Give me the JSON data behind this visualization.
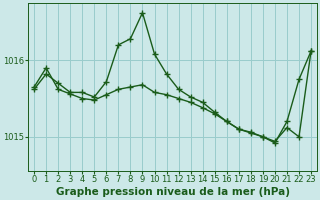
{
  "title": "",
  "xlabel": "Graphe pression niveau de la mer (hPa)",
  "xlabel_fontsize": 7.5,
  "background_color": "#cce8e8",
  "grid_color": "#99cccc",
  "line_color": "#1a5c1a",
  "marker": "+",
  "markersize": 4,
  "linewidth": 1.0,
  "xlim": [
    -0.5,
    23.5
  ],
  "ylim": [
    1014.55,
    1016.75
  ],
  "yticks": [
    1015.0,
    1016.0
  ],
  "xticks": [
    0,
    1,
    2,
    3,
    4,
    5,
    6,
    7,
    8,
    9,
    10,
    11,
    12,
    13,
    14,
    15,
    16,
    17,
    18,
    19,
    20,
    21,
    22,
    23
  ],
  "tick_fontsize": 6,
  "series1_x": [
    0,
    1,
    2,
    3,
    4,
    5,
    6,
    7,
    8,
    9,
    10,
    11,
    12,
    13,
    14,
    15,
    16,
    17,
    18,
    19,
    20,
    21,
    22,
    23
  ],
  "series1_y": [
    1015.62,
    1015.82,
    1015.7,
    1015.58,
    1015.58,
    1015.52,
    1015.72,
    1016.2,
    1016.28,
    1016.62,
    1016.08,
    1015.82,
    1015.62,
    1015.52,
    1015.45,
    1015.32,
    1015.2,
    1015.1,
    1015.06,
    1015.0,
    1014.92,
    1015.2,
    1015.75,
    1016.12
  ],
  "series2_x": [
    0,
    1,
    2,
    3,
    4,
    5,
    6,
    7,
    8,
    9,
    10,
    11,
    12,
    13,
    14,
    15,
    16,
    17,
    18,
    19,
    20,
    21,
    22,
    23
  ],
  "series2_y": [
    1015.65,
    1015.9,
    1015.62,
    1015.56,
    1015.5,
    1015.48,
    1015.55,
    1015.62,
    1015.65,
    1015.68,
    1015.58,
    1015.55,
    1015.5,
    1015.45,
    1015.38,
    1015.3,
    1015.2,
    1015.1,
    1015.05,
    1015.0,
    1014.94,
    1015.12,
    1015.0,
    1016.12
  ]
}
